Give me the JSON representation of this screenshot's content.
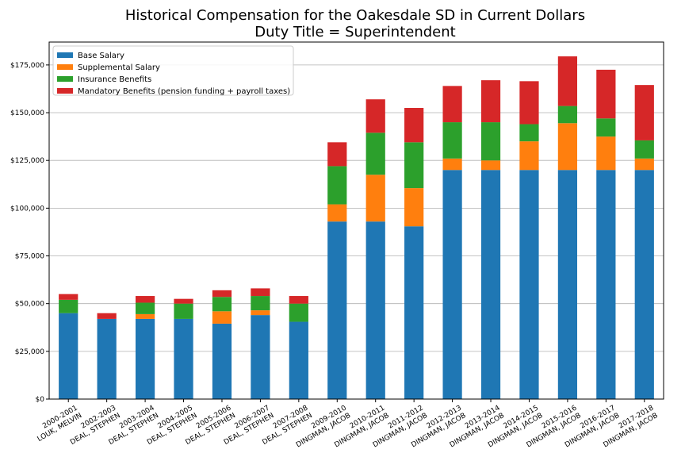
{
  "chart_data": {
    "type": "bar",
    "stacked": true,
    "title": "Historical Compensation for the Oakesdale SD in Current Dollars",
    "subtitle": "Duty Title = Superintendent",
    "xlabel": "",
    "ylabel": "",
    "ylim": [
      0,
      187000
    ],
    "yticks": [
      0,
      25000,
      50000,
      75000,
      100000,
      125000,
      150000,
      175000
    ],
    "ytick_labels": [
      "$0",
      "$25,000",
      "$50,000",
      "$75,000",
      "$100,000",
      "$125,000",
      "$150,000",
      "$175,000"
    ],
    "grid": "y",
    "legend_position": "top-left",
    "categories": [
      {
        "year": "2000-2001",
        "name": "LOUK, MELVIN"
      },
      {
        "year": "2002-2003",
        "name": "DEAL, STEPHEN"
      },
      {
        "year": "2003-2004",
        "name": "DEAL, STEPHEN"
      },
      {
        "year": "2004-2005",
        "name": "DEAL, STEPHEN"
      },
      {
        "year": "2005-2006",
        "name": "DEAL, STEPHEN"
      },
      {
        "year": "2006-2007",
        "name": "DEAL, STEPHEN"
      },
      {
        "year": "2007-2008",
        "name": "DEAL, STEPHEN"
      },
      {
        "year": "2009-2010",
        "name": "DINGMAN, JACOB"
      },
      {
        "year": "2010-2011",
        "name": "DINGMAN, JACOB"
      },
      {
        "year": "2011-2012",
        "name": "DINGMAN, JACOB"
      },
      {
        "year": "2012-2013",
        "name": "DINGMAN, JACOB"
      },
      {
        "year": "2013-2014",
        "name": "DINGMAN, JACOB"
      },
      {
        "year": "2014-2015",
        "name": "DINGMAN, JACOB"
      },
      {
        "year": "2015-2016",
        "name": "DINGMAN, JACOB"
      },
      {
        "year": "2016-2017",
        "name": "DINGMAN, JACOB"
      },
      {
        "year": "2017-2018",
        "name": "DINGMAN, JACOB"
      }
    ],
    "series": [
      {
        "name": "Base Salary",
        "color": "#1f77b4",
        "values": [
          45000,
          42000,
          42000,
          42000,
          39500,
          44000,
          40500,
          93000,
          93000,
          90500,
          120000,
          120000,
          120000,
          120000,
          120000,
          120000
        ]
      },
      {
        "name": "Supplemental Salary",
        "color": "#ff7f0e",
        "values": [
          0,
          0,
          2500,
          0,
          6500,
          2500,
          0,
          9000,
          24500,
          20000,
          6000,
          5000,
          15000,
          24500,
          17500,
          6000
        ]
      },
      {
        "name": "Insurance Benefits",
        "color": "#2ca02c",
        "values": [
          7000,
          0,
          6000,
          8000,
          7500,
          7500,
          9500,
          20000,
          22000,
          24000,
          19000,
          20000,
          9000,
          9000,
          9500,
          9500
        ]
      },
      {
        "name": "Mandatory Benefits (pension funding + payroll taxes)",
        "color": "#d62728",
        "values": [
          3000,
          3000,
          3500,
          2500,
          3500,
          4000,
          4000,
          12500,
          17500,
          18000,
          19000,
          22000,
          22500,
          26000,
          25500,
          29000
        ]
      }
    ]
  }
}
